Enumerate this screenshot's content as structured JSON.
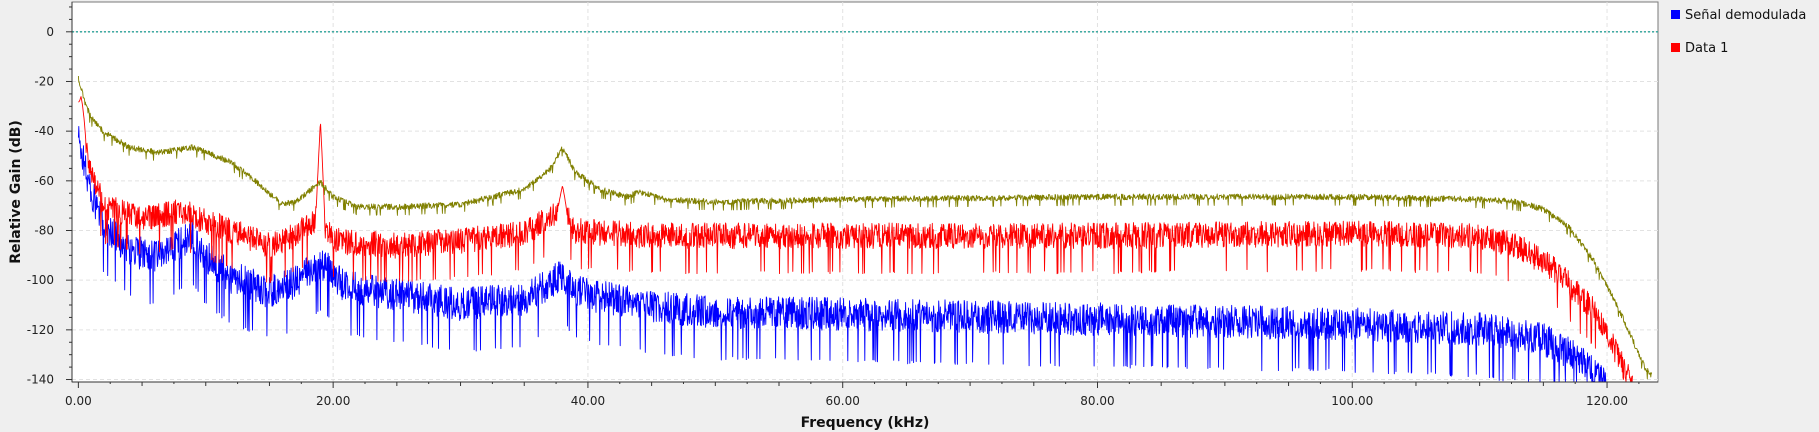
{
  "chart_data": {
    "type": "line",
    "title": "",
    "xlabel": "Frequency (kHz)",
    "ylabel": "Relative Gain (dB)",
    "xlim": [
      -0.5,
      124
    ],
    "ylim": [
      -141,
      12
    ],
    "x_ticks": [
      0,
      20,
      40,
      60,
      80,
      100,
      120
    ],
    "x_tick_labels": [
      "0.00",
      "20.00",
      "40.00",
      "60.00",
      "80.00",
      "100.00",
      "120.00"
    ],
    "y_ticks": [
      0,
      -20,
      -40,
      -60,
      -80,
      -100,
      -120,
      -140
    ],
    "y_tick_labels": [
      "0",
      "-20",
      "-40",
      "-60",
      "-80",
      "-100",
      "-120",
      "-140"
    ],
    "grid": true,
    "legend_position": "right",
    "reference_line": {
      "y": 0,
      "color": "#2aa198"
    },
    "series": [
      {
        "name": "Señal demodulada",
        "color": "#0000ff",
        "noise_db": 14,
        "envelope": [
          [
            0,
            -40
          ],
          [
            1,
            -62
          ],
          [
            2,
            -75
          ],
          [
            4,
            -85
          ],
          [
            6,
            -88
          ],
          [
            8,
            -82
          ],
          [
            9,
            -80
          ],
          [
            10,
            -88
          ],
          [
            12,
            -96
          ],
          [
            15,
            -102
          ],
          [
            17,
            -98
          ],
          [
            19,
            -90
          ],
          [
            21,
            -100
          ],
          [
            25,
            -103
          ],
          [
            30,
            -107
          ],
          [
            35,
            -105
          ],
          [
            38,
            -95
          ],
          [
            39,
            -102
          ],
          [
            45,
            -108
          ],
          [
            50,
            -110
          ],
          [
            60,
            -111
          ],
          [
            70,
            -112
          ],
          [
            80,
            -113
          ],
          [
            90,
            -114
          ],
          [
            100,
            -115
          ],
          [
            110,
            -117
          ],
          [
            115,
            -121
          ],
          [
            118,
            -130
          ],
          [
            120,
            -140
          ]
        ]
      },
      {
        "name": "Data 1",
        "color": "#ff0000",
        "noise_db": 11,
        "envelope": [
          [
            0,
            -30
          ],
          [
            0.5,
            -40
          ],
          [
            1,
            -55
          ],
          [
            2,
            -68
          ],
          [
            5,
            -73
          ],
          [
            8,
            -70
          ],
          [
            9,
            -72
          ],
          [
            12,
            -78
          ],
          [
            15,
            -84
          ],
          [
            17,
            -80
          ],
          [
            19,
            -72
          ],
          [
            20,
            -82
          ],
          [
            25,
            -84
          ],
          [
            30,
            -82
          ],
          [
            35,
            -79
          ],
          [
            38,
            -70
          ],
          [
            39,
            -78
          ],
          [
            45,
            -80
          ],
          [
            60,
            -80
          ],
          [
            80,
            -80
          ],
          [
            100,
            -79
          ],
          [
            110,
            -80
          ],
          [
            113,
            -84
          ],
          [
            116,
            -94
          ],
          [
            119,
            -110
          ],
          [
            121,
            -130
          ],
          [
            122,
            -140
          ]
        ],
        "spikes": [
          [
            19,
            -36
          ],
          [
            38,
            -62
          ],
          [
            0.2,
            -26
          ]
        ]
      },
      {
        "name": "",
        "color": "#808000",
        "noise_db": 2.5,
        "envelope": [
          [
            0,
            -18
          ],
          [
            0.5,
            -28
          ],
          [
            1,
            -34
          ],
          [
            2,
            -40
          ],
          [
            4,
            -46
          ],
          [
            6,
            -48
          ],
          [
            8,
            -47
          ],
          [
            9,
            -46
          ],
          [
            10,
            -48
          ],
          [
            12,
            -52
          ],
          [
            14,
            -60
          ],
          [
            16,
            -69
          ],
          [
            17,
            -68
          ],
          [
            19,
            -60
          ],
          [
            20,
            -66
          ],
          [
            22,
            -70
          ],
          [
            25,
            -70
          ],
          [
            30,
            -69
          ],
          [
            35,
            -63
          ],
          [
            37,
            -55
          ],
          [
            38,
            -46
          ],
          [
            39,
            -56
          ],
          [
            41,
            -63
          ],
          [
            43,
            -66
          ],
          [
            44,
            -64
          ],
          [
            46,
            -67
          ],
          [
            50,
            -68
          ],
          [
            60,
            -67
          ],
          [
            80,
            -66
          ],
          [
            100,
            -66
          ],
          [
            110,
            -67
          ],
          [
            113,
            -68
          ],
          [
            115,
            -71
          ],
          [
            117,
            -78
          ],
          [
            119,
            -92
          ],
          [
            121,
            -112
          ],
          [
            123,
            -135
          ],
          [
            123.5,
            -138
          ]
        ]
      }
    ]
  }
}
